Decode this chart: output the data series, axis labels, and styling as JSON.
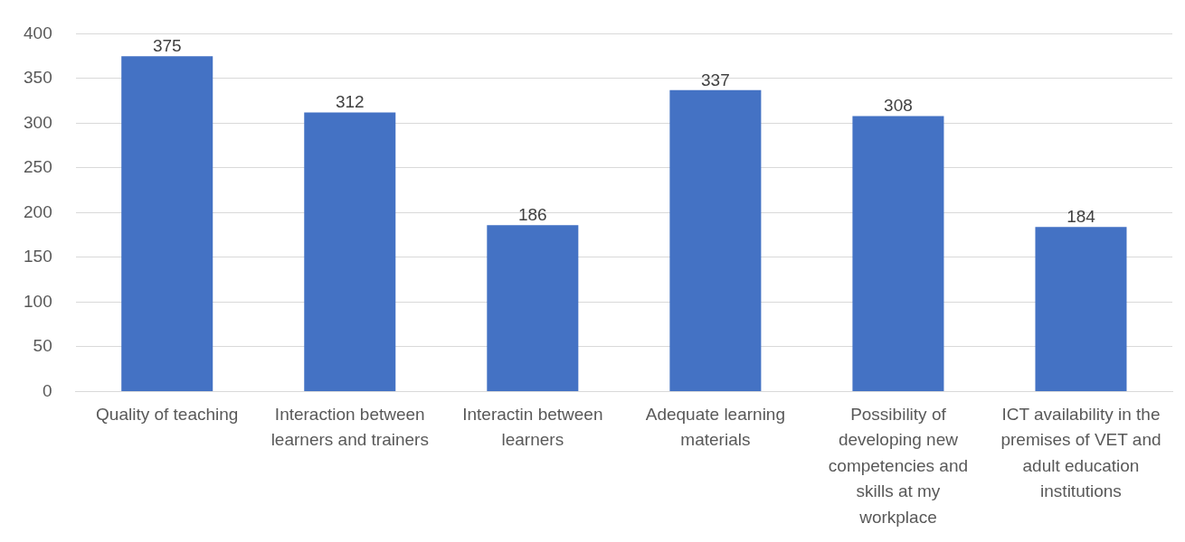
{
  "chart_data": {
    "type": "bar",
    "categories": [
      "Quality of teaching",
      "Interaction between learners and trainers",
      "Interactin between learners",
      "Adequate learning materials",
      "Possibility of developing new competencies and skills at my workplace",
      "ICT availability in the premises of VET and adult education institutions"
    ],
    "values": [
      375,
      312,
      186,
      337,
      308,
      184
    ],
    "color": "#4472c4",
    "ylim": [
      0,
      400
    ],
    "yticks": [
      0,
      50,
      100,
      150,
      200,
      250,
      300,
      350,
      400
    ],
    "grid": "y",
    "data_labels": true
  }
}
